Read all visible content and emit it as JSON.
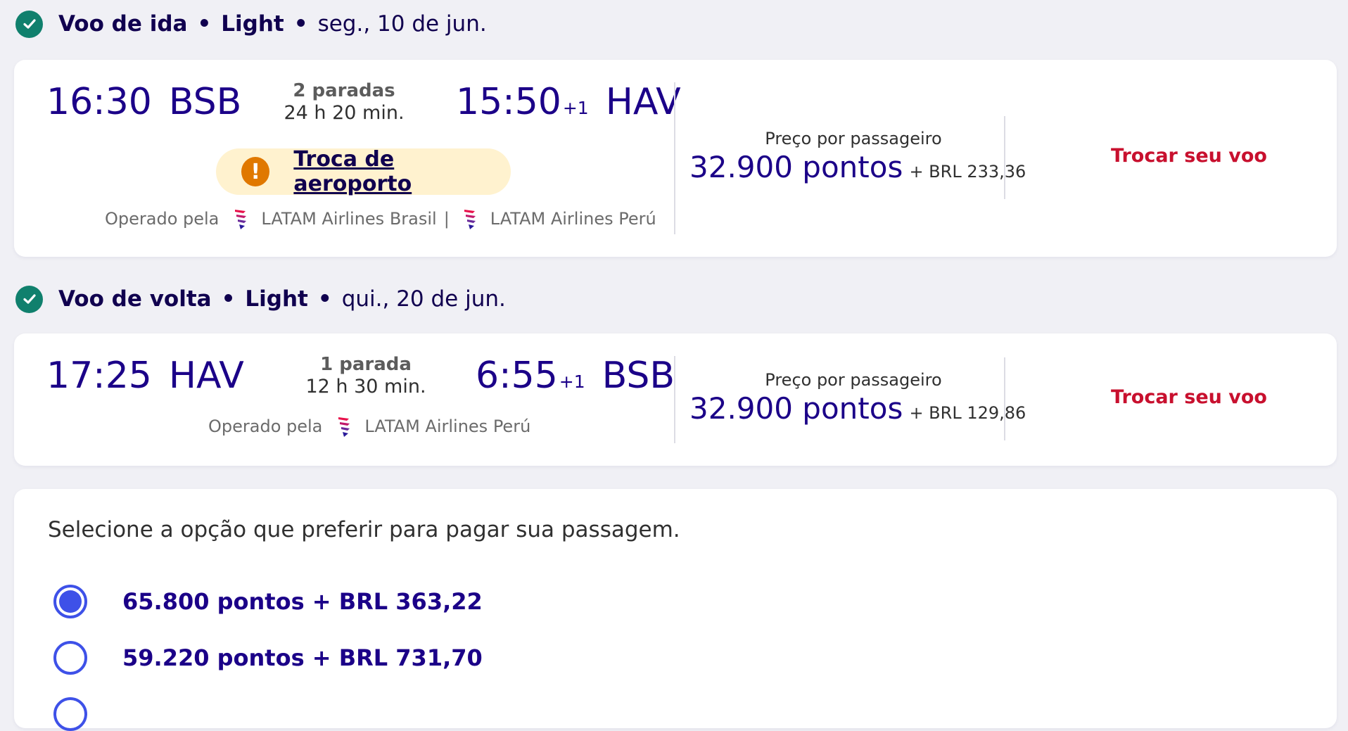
{
  "outbound": {
    "header": {
      "title": "Voo de ida",
      "fare": "Light",
      "date": "seg., 10 de jun."
    },
    "departure_time": "16:30",
    "departure_code": "BSB",
    "stops": "2 paradas",
    "duration": "24 h 20 min.",
    "arrival_time": "15:50",
    "arrival_plus": "+1",
    "arrival_code": "HAV",
    "warning_label": "Troca de aeroporto",
    "operated_label": "Operado pela",
    "airlines": [
      "LATAM Airlines Brasil",
      "LATAM Airlines Perú"
    ],
    "separator": "|",
    "price_label": "Preço por passageiro",
    "price_points": "32.900 pontos",
    "price_extra": "+ BRL 233,36",
    "change_label": "Trocar seu voo"
  },
  "inbound": {
    "header": {
      "title": "Voo de volta",
      "fare": "Light",
      "date": "qui., 20 de jun."
    },
    "departure_time": "17:25",
    "departure_code": "HAV",
    "stops": "1 parada",
    "duration": "12 h 30 min.",
    "arrival_time": "6:55",
    "arrival_plus": "+1",
    "arrival_code": "BSB",
    "operated_label": "Operado pela",
    "airlines": [
      "LATAM Airlines Perú"
    ],
    "price_label": "Preço por passageiro",
    "price_points": "32.900 pontos",
    "price_extra": "+ BRL 129,86",
    "change_label": "Trocar seu voo"
  },
  "payment": {
    "title": "Selecione a opção que preferir para pagar sua passagem.",
    "options": [
      {
        "label": "65.800 pontos + BRL 363,22",
        "selected": true
      },
      {
        "label": "59.220 pontos + BRL 731,70",
        "selected": false
      }
    ]
  },
  "colors": {
    "brand_indigo": "#1b0088",
    "accent_red": "#c8102e",
    "check_green": "#10806d",
    "radio_blue": "#3e51e8",
    "warning_orange": "#e07800",
    "warning_bg": "#fff2cf"
  },
  "icons": {
    "check": "check-circle-icon",
    "warning": "exclamation-circle-icon",
    "airline": "latam-logo-icon"
  }
}
